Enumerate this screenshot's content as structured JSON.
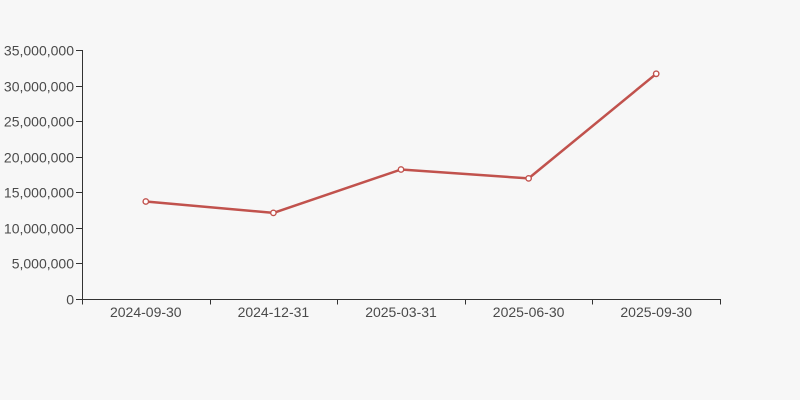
{
  "page": {
    "background": "#f7f7f7"
  },
  "chart_data": {
    "type": "line",
    "title": "",
    "xlabel": "",
    "ylabel": "",
    "categories": [
      "2024-09-30",
      "2024-12-31",
      "2025-03-31",
      "2025-06-30",
      "2025-09-30"
    ],
    "values": [
      13700000,
      12100000,
      18200000,
      16950000,
      31650000
    ],
    "ylim": [
      0,
      35000000
    ],
    "yticks": [
      0,
      5000000,
      10000000,
      15000000,
      20000000,
      25000000,
      30000000,
      35000000
    ],
    "ytick_labels": [
      "0",
      "5,000,000",
      "10,000,000",
      "15,000,000",
      "20,000,000",
      "25,000,000",
      "30,000,000",
      "35,000,000"
    ],
    "grid": false,
    "legend": false,
    "line_color": "#c1524d",
    "marker_style": "open-circle",
    "marker_fill": "#ffffff",
    "axis_color": "#333333",
    "tick_label_color": "#4a4a4a",
    "background": "#f7f7f7"
  }
}
